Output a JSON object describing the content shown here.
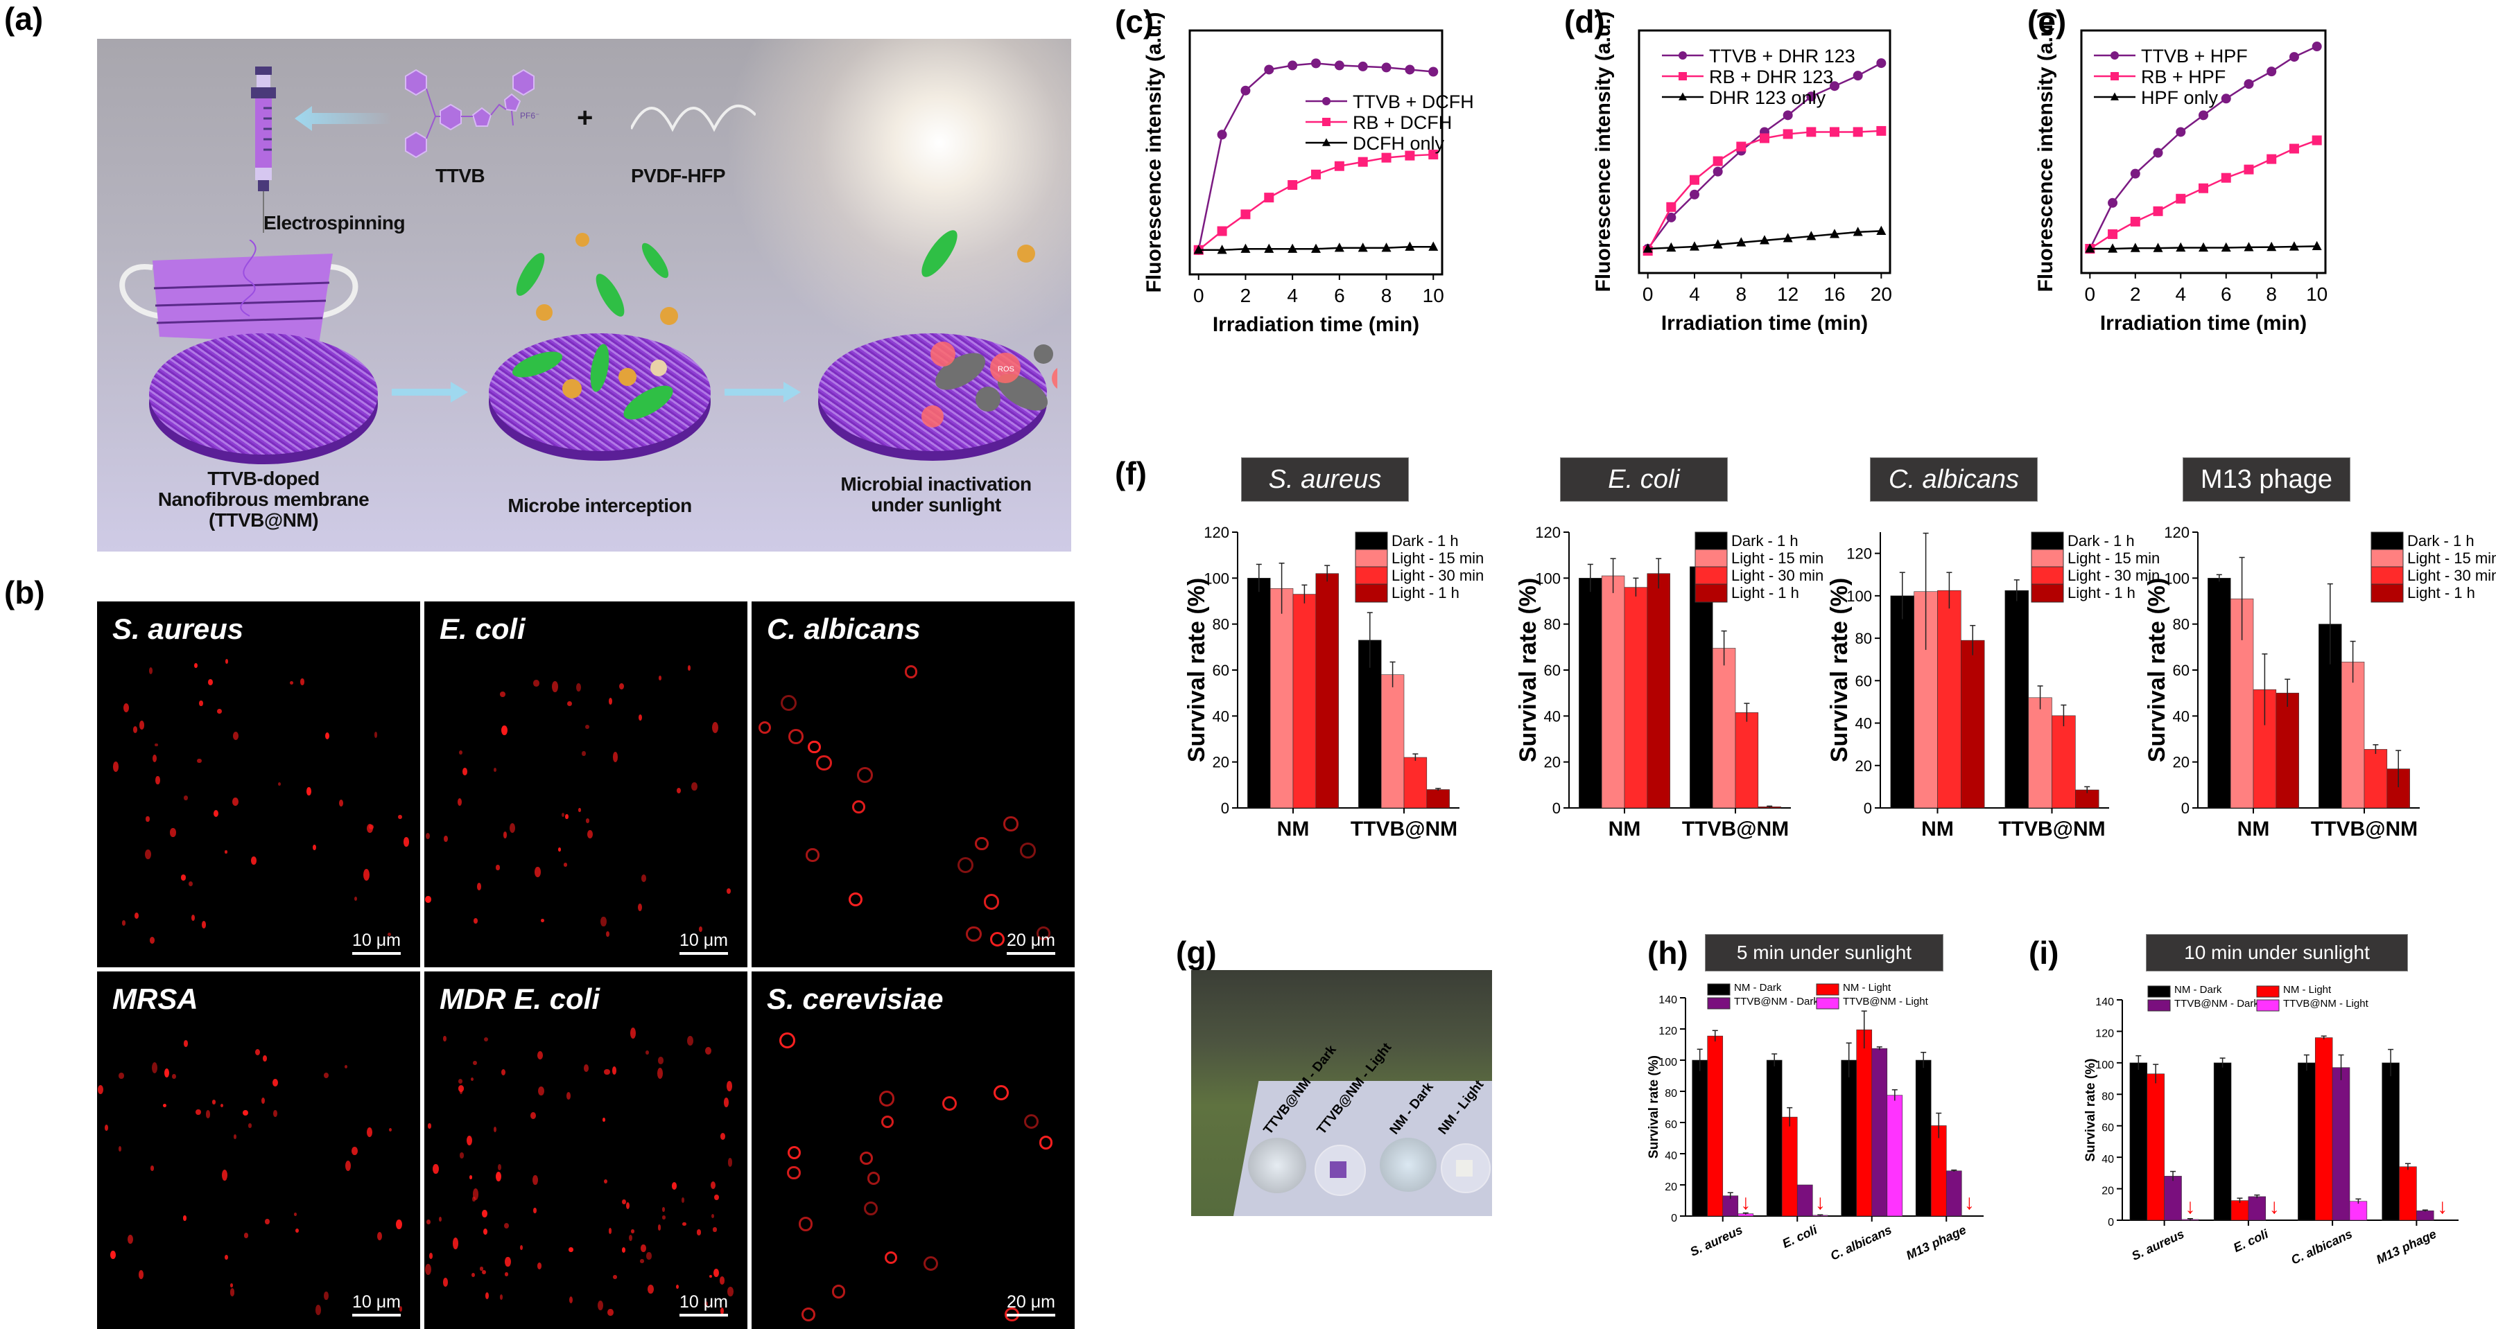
{
  "panel_labels": {
    "a": "(a)",
    "b": "(b)",
    "c": "(c)",
    "d": "(d)",
    "e": "(e)",
    "f": "(f)",
    "g": "(g)",
    "h": "(h)",
    "i": "(i)"
  },
  "scheme": {
    "electrospinning": "Electrospinning",
    "ttvb": "TTVB",
    "plus": "+",
    "pvdf": "PVDF-HFP",
    "pf6": "PF6⁻",
    "step1": [
      "TTVB-doped",
      "Nanofibrous membrane",
      "(TTVB@NM)"
    ],
    "step2": "Microbe interception",
    "step3": [
      "Microbial inactivation",
      "under sunlight"
    ],
    "ros": "ROS"
  },
  "micrographs": [
    {
      "label": "S. aureus",
      "scale": "10 μm"
    },
    {
      "label": "E. coli",
      "scale": "10 μm"
    },
    {
      "label": "C. albicans",
      "scale": "20 μm"
    },
    {
      "label": "MRSA",
      "scale": "10 μm"
    },
    {
      "label": "MDR E. coli",
      "scale": "10 μm"
    },
    {
      "label": "S. cerevisiae",
      "scale": "20 μm"
    }
  ],
  "photo": {
    "labels": [
      "TTVB@NM - Dark",
      "TTVB@NM - Light",
      "NM - Dark",
      "NM - Light"
    ]
  },
  "colors": {
    "purple": "#7b1a82",
    "pink": "#ff1f7a",
    "black": "#000000",
    "dark": "#000000",
    "light15": "#ff8080",
    "light30": "#ff2a2a",
    "light1h": "#b30000",
    "nm_dark": "#000000",
    "nm_light": "#ff0000",
    "ttvb_dark": "#7a0f7e",
    "ttvb_light": "#ff33ff",
    "titlebox": "#373535"
  },
  "chart_data": [
    {
      "id": "c",
      "type": "line",
      "title": "",
      "xlabel": "Irradiation time (min)",
      "ylabel": "Fluorescence intensity (a.u.)",
      "xlim": [
        0,
        10
      ],
      "ylim": [
        0,
        100
      ],
      "xticks": [
        0,
        2,
        4,
        6,
        8,
        10
      ],
      "legend_position": "center-right",
      "x": [
        0,
        1,
        2,
        3,
        4,
        5,
        6,
        7,
        8,
        9,
        10
      ],
      "series": [
        {
          "name": "TTVB + DCFH",
          "marker": "circle",
          "color": "#7b1a82",
          "values": [
            0,
            55,
            76,
            86,
            88,
            89,
            88,
            87.5,
            87,
            86,
            85
          ]
        },
        {
          "name": "RB + DCFH",
          "marker": "square",
          "color": "#ff1f7a",
          "values": [
            0,
            9,
            17,
            25,
            31,
            36,
            40,
            42,
            44,
            45,
            45.5
          ]
        },
        {
          "name": "DCFH only",
          "marker": "triangle",
          "color": "#000000",
          "values": [
            0,
            0,
            0.5,
            0.5,
            0.5,
            0.5,
            1,
            1,
            1,
            1.5,
            1.5
          ]
        }
      ]
    },
    {
      "id": "d",
      "type": "line",
      "title": "",
      "xlabel": "Irradiation time (min)",
      "ylabel": "Fluorescence intensity (a.u.)",
      "xlim": [
        0,
        20
      ],
      "ylim": [
        0,
        100
      ],
      "xticks": [
        0,
        4,
        8,
        12,
        16,
        20
      ],
      "legend_position": "top-left",
      "x": [
        0,
        2,
        4,
        6,
        8,
        10,
        12,
        14,
        16,
        18,
        20
      ],
      "series": [
        {
          "name": "TTVB + DHR 123",
          "marker": "circle",
          "color": "#7b1a82",
          "values": [
            0,
            15,
            26,
            37,
            47,
            56,
            64,
            73,
            78,
            83,
            89
          ]
        },
        {
          "name": "RB + DHR 123",
          "marker": "square",
          "color": "#ff1f7a",
          "values": [
            -1,
            20,
            33,
            42,
            49,
            53,
            55,
            56,
            56,
            56,
            56.5
          ]
        },
        {
          "name": "DHR 123 only",
          "marker": "triangle",
          "color": "#000000",
          "values": [
            0,
            0.5,
            1,
            2,
            3,
            4,
            5,
            6,
            7,
            8,
            8.5
          ]
        }
      ]
    },
    {
      "id": "e",
      "type": "line",
      "title": "",
      "xlabel": "Irradiation time (min)",
      "ylabel": "Fluorescence intensity (a.u.)",
      "xlim": [
        0,
        10
      ],
      "ylim": [
        0,
        100
      ],
      "xticks": [
        0,
        2,
        4,
        6,
        8,
        10
      ],
      "legend_position": "top-left",
      "x": [
        0,
        1,
        2,
        3,
        4,
        5,
        6,
        7,
        8,
        9,
        10
      ],
      "series": [
        {
          "name": "TTVB + HPF",
          "marker": "circle",
          "color": "#7b1a82",
          "values": [
            0,
            22,
            36,
            46,
            56,
            64,
            72,
            79,
            85,
            92,
            97
          ]
        },
        {
          "name": "RB + HPF",
          "marker": "square",
          "color": "#ff1f7a",
          "values": [
            0,
            7,
            13,
            18,
            24,
            29,
            34,
            38,
            43,
            48,
            52
          ]
        },
        {
          "name": "HPF only",
          "marker": "triangle",
          "color": "#000000",
          "values": [
            0,
            0,
            0.3,
            0.3,
            0.5,
            0.5,
            0.5,
            0.7,
            0.8,
            1,
            1.2
          ]
        }
      ]
    },
    {
      "id": "f1",
      "type": "bar",
      "title": "S. aureus",
      "title_italic": true,
      "xlabel": "",
      "ylabel": "Survival rate (%)",
      "ylim": [
        0,
        120
      ],
      "yticks": [
        0,
        20,
        40,
        60,
        80,
        100,
        120
      ],
      "categories": [
        "NM",
        "TTVB@NM"
      ],
      "legend_position": "top-right",
      "series": [
        {
          "name": "Dark - 1 h",
          "color": "#000000",
          "values": [
            100,
            73
          ],
          "errors": [
            6,
            12
          ]
        },
        {
          "name": "Light - 15 min",
          "color": "#ff8080",
          "values": [
            95.5,
            58
          ],
          "errors": [
            11,
            5.5
          ]
        },
        {
          "name": "Light - 30 min",
          "color": "#ff2a2a",
          "values": [
            93,
            22
          ],
          "errors": [
            4,
            1.5
          ]
        },
        {
          "name": "Light - 1 h",
          "color": "#b30000",
          "values": [
            102,
            8
          ],
          "errors": [
            3.5,
            0.5
          ]
        }
      ]
    },
    {
      "id": "f2",
      "type": "bar",
      "title": "E. coli",
      "title_italic": true,
      "xlabel": "",
      "ylabel": "Survival rate (%)",
      "ylim": [
        0,
        120
      ],
      "yticks": [
        0,
        20,
        40,
        60,
        80,
        100,
        120
      ],
      "categories": [
        "NM",
        "TTVB@NM"
      ],
      "legend_position": "top-right",
      "series": [
        {
          "name": "Dark - 1 h",
          "color": "#000000",
          "values": [
            100,
            105
          ],
          "errors": [
            6,
            11
          ]
        },
        {
          "name": "Light - 15 min",
          "color": "#ff8080",
          "values": [
            101,
            69.5
          ],
          "errors": [
            7.5,
            7.5
          ]
        },
        {
          "name": "Light - 30 min",
          "color": "#ff2a2a",
          "values": [
            96,
            41.5
          ],
          "errors": [
            4,
            4
          ]
        },
        {
          "name": "Light - 1 h",
          "color": "#b30000",
          "values": [
            102,
            0.5
          ],
          "errors": [
            6.5,
            0.3
          ]
        }
      ]
    },
    {
      "id": "f3",
      "type": "bar",
      "title": "C. albicans",
      "title_italic": true,
      "xlabel": "",
      "ylabel": "Survival rate (%)",
      "ylim": [
        0,
        130
      ],
      "yticks": [
        0,
        20,
        40,
        60,
        80,
        100,
        120
      ],
      "categories": [
        "NM",
        "TTVB@NM"
      ],
      "legend_position": "top-right",
      "series": [
        {
          "name": "Dark - 1 h",
          "color": "#000000",
          "values": [
            100,
            102.5
          ],
          "errors": [
            11,
            5
          ]
        },
        {
          "name": "Light - 15 min",
          "color": "#ff8080",
          "values": [
            102,
            52
          ],
          "errors": [
            27.5,
            5.5
          ]
        },
        {
          "name": "Light - 30 min",
          "color": "#ff2a2a",
          "values": [
            102.5,
            43.5
          ],
          "errors": [
            8.5,
            5
          ]
        },
        {
          "name": "Light - 1 h",
          "color": "#b30000",
          "values": [
            79,
            8.5
          ],
          "errors": [
            7,
            1.5
          ]
        }
      ]
    },
    {
      "id": "f4",
      "type": "bar",
      "title": "M13 phage",
      "title_italic": false,
      "xlabel": "",
      "ylabel": "Survival rate (%)",
      "ylim": [
        0,
        120
      ],
      "yticks": [
        0,
        20,
        40,
        60,
        80,
        100,
        120
      ],
      "categories": [
        "NM",
        "TTVB@NM"
      ],
      "legend_position": "top-right",
      "series": [
        {
          "name": "Dark - 1 h",
          "color": "#000000",
          "values": [
            100,
            80
          ],
          "errors": [
            1.5,
            17.5
          ]
        },
        {
          "name": "Light - 15 min",
          "color": "#ff8080",
          "values": [
            91,
            63.5
          ],
          "errors": [
            18,
            9
          ]
        },
        {
          "name": "Light - 30 min",
          "color": "#ff2a2a",
          "values": [
            51.5,
            25.5
          ],
          "errors": [
            15.5,
            2
          ]
        },
        {
          "name": "Light - 1 h",
          "color": "#b30000",
          "values": [
            50,
            17
          ],
          "errors": [
            6,
            8
          ]
        }
      ]
    },
    {
      "id": "h",
      "type": "bar",
      "title": "5 min under sunlight",
      "title_italic": false,
      "xlabel": "",
      "ylabel": "Survival rate (%)",
      "ylim": [
        0,
        140
      ],
      "yticks": [
        0,
        20,
        40,
        60,
        80,
        100,
        120,
        140
      ],
      "categories": [
        "S. aureus",
        "E. coli",
        "C. albicans",
        "M13 phage"
      ],
      "legend_position": "top",
      "arrow_marker": "↓",
      "series": [
        {
          "name": "NM - Dark",
          "color": "#000000",
          "values": [
            100,
            100,
            100,
            100
          ],
          "errors": [
            7,
            4,
            11,
            5
          ]
        },
        {
          "name": "NM - Light",
          "color": "#ff0000",
          "values": [
            115.5,
            63.5,
            119.5,
            58
          ],
          "errors": [
            3.5,
            6,
            12,
            8
          ]
        },
        {
          "name": "TTVB@NM - Dark",
          "color": "#7a0f7e",
          "values": [
            13,
            20,
            107.5,
            29
          ],
          "errors": [
            2,
            0,
            1,
            0.5
          ]
        },
        {
          "name": "TTVB@NM - Light",
          "color": "#ff33ff",
          "values": [
            1.5,
            0.5,
            77.5,
            0
          ],
          "errors": [
            0.5,
            0.3,
            3.5,
            0
          ]
        }
      ]
    },
    {
      "id": "i",
      "type": "bar",
      "title": "10 min under sunlight",
      "title_italic": false,
      "xlabel": "",
      "ylabel": "Survival rate (%)",
      "ylim": [
        0,
        140
      ],
      "yticks": [
        0,
        20,
        40,
        60,
        80,
        100,
        120,
        140
      ],
      "categories": [
        "S. aureus",
        "E. coli",
        "C. albicans",
        "M13 phage"
      ],
      "legend_position": "top",
      "arrow_marker": "↓",
      "series": [
        {
          "name": "NM - Dark",
          "color": "#000000",
          "values": [
            100,
            100,
            100,
            100
          ],
          "errors": [
            4.5,
            3,
            5,
            8.5
          ]
        },
        {
          "name": "NM - Light",
          "color": "#ff0000",
          "values": [
            93,
            12.5,
            116,
            34
          ],
          "errors": [
            6,
            1.5,
            1,
            2
          ]
        },
        {
          "name": "TTVB@NM - Dark",
          "color": "#7a0f7e",
          "values": [
            28,
            15,
            97,
            6
          ],
          "errors": [
            3,
            1,
            8,
            0.5
          ]
        },
        {
          "name": "TTVB@NM - Light",
          "color": "#ff33ff",
          "values": [
            0.5,
            0,
            12,
            0
          ],
          "errors": [
            0.5,
            0,
            1.5,
            0
          ]
        }
      ]
    }
  ]
}
